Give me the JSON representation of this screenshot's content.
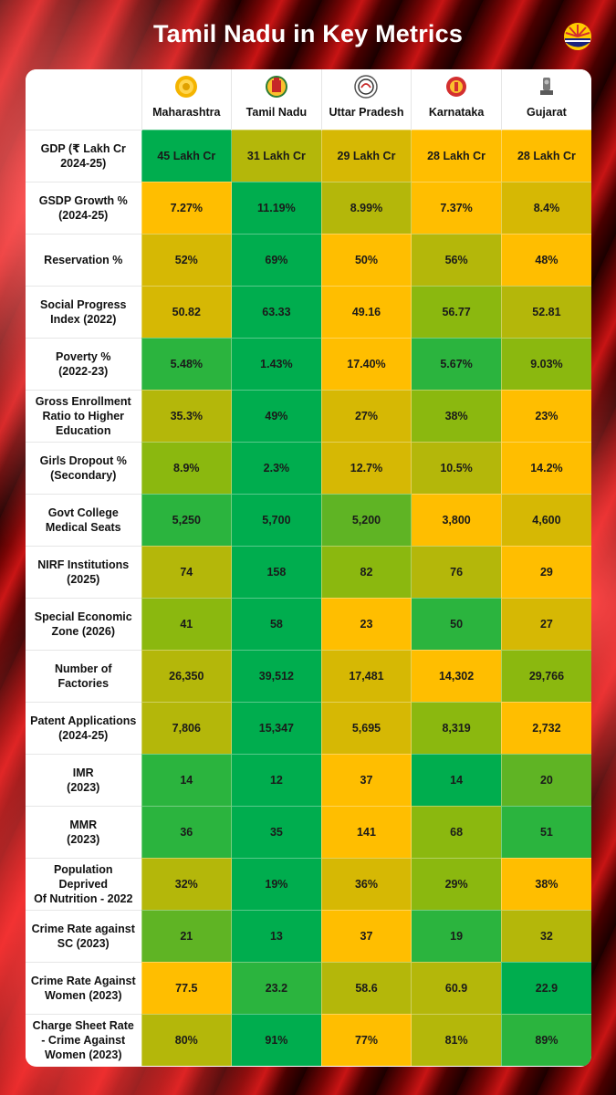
{
  "title": "Tamil Nadu in Key Metrics",
  "states": [
    "Maharashtra",
    "Tamil Nadu",
    "Uttar Pradesh",
    "Karnataka",
    "Gujarat"
  ],
  "rows": [
    {
      "label": "GDP (₹ Lakh Cr\n2024-25)",
      "values": [
        "45 Lakh Cr",
        "31 Lakh Cr",
        "29 Lakh Cr",
        "28 Lakh Cr",
        "28 Lakh Cr"
      ],
      "shades": [
        "g1",
        "y1",
        "y2",
        "o1",
        "o1"
      ]
    },
    {
      "label": "GSDP Growth %\n(2024-25)",
      "values": [
        "7.27%",
        "11.19%",
        "8.99%",
        "7.37%",
        "8.4%"
      ],
      "shades": [
        "o1",
        "g1",
        "y1",
        "o1",
        "y2"
      ]
    },
    {
      "label": "Reservation %",
      "values": [
        "52%",
        "69%",
        "50%",
        "56%",
        "48%"
      ],
      "shades": [
        "y2",
        "g1",
        "o1",
        "y1",
        "o1"
      ]
    },
    {
      "label": "Social Progress\nIndex (2022)",
      "values": [
        "50.82",
        "63.33",
        "49.16",
        "56.77",
        "52.81"
      ],
      "shades": [
        "y2",
        "g1",
        "o1",
        "g4",
        "y1"
      ]
    },
    {
      "label": "Poverty %\n(2022-23)",
      "values": [
        "5.48%",
        "1.43%",
        "17.40%",
        "5.67%",
        "9.03%"
      ],
      "shades": [
        "g2",
        "g1",
        "o1",
        "g2",
        "g4"
      ]
    },
    {
      "label": "Gross Enrollment\nRatio to Higher\nEducation",
      "values": [
        "35.3%",
        "49%",
        "27%",
        "38%",
        "23%"
      ],
      "shades": [
        "y1",
        "g1",
        "y2",
        "g4",
        "o1"
      ]
    },
    {
      "label": "Girls Dropout %\n(Secondary)",
      "values": [
        "8.9%",
        "2.3%",
        "12.7%",
        "10.5%",
        "14.2%"
      ],
      "shades": [
        "g4",
        "g1",
        "y2",
        "y1",
        "o1"
      ]
    },
    {
      "label": "Govt College\nMedical Seats",
      "values": [
        "5,250",
        "5,700",
        "5,200",
        "3,800",
        "4,600"
      ],
      "shades": [
        "g2",
        "g1",
        "g3",
        "o1",
        "y2"
      ]
    },
    {
      "label": "NIRF Institutions\n(2025)",
      "values": [
        "74",
        "158",
        "82",
        "76",
        "29"
      ],
      "shades": [
        "y1",
        "g1",
        "g4",
        "y1",
        "o1"
      ]
    },
    {
      "label": "Special Economic\nZone (2026)",
      "values": [
        "41",
        "58",
        "23",
        "50",
        "27"
      ],
      "shades": [
        "g4",
        "g1",
        "o1",
        "g2",
        "y2"
      ]
    },
    {
      "label": "Number of\nFactories",
      "values": [
        "26,350",
        "39,512",
        "17,481",
        "14,302",
        "29,766"
      ],
      "shades": [
        "y1",
        "g1",
        "y2",
        "o1",
        "g4"
      ]
    },
    {
      "label": "Patent Applications\n(2024-25)",
      "values": [
        "7,806",
        "15,347",
        "5,695",
        "8,319",
        "2,732"
      ],
      "shades": [
        "y1",
        "g1",
        "y2",
        "g4",
        "o1"
      ]
    },
    {
      "label": "IMR\n(2023)",
      "values": [
        "14",
        "12",
        "37",
        "14",
        "20"
      ],
      "shades": [
        "g2",
        "g1",
        "o1",
        "g1",
        "g3"
      ]
    },
    {
      "label": "MMR\n(2023)",
      "values": [
        "36",
        "35",
        "141",
        "68",
        "51"
      ],
      "shades": [
        "g2",
        "g1",
        "o1",
        "g4",
        "g2"
      ]
    },
    {
      "label": "Population\nDeprived\nOf Nutrition - 2022",
      "values": [
        "32%",
        "19%",
        "36%",
        "29%",
        "38%"
      ],
      "shades": [
        "y1",
        "g1",
        "y2",
        "g4",
        "o1"
      ]
    },
    {
      "label": "Crime Rate against\nSC (2023)",
      "values": [
        "21",
        "13",
        "37",
        "19",
        "32"
      ],
      "shades": [
        "g3",
        "g1",
        "o1",
        "g2",
        "y1"
      ]
    },
    {
      "label": "Crime Rate Against\nWomen (2023)",
      "values": [
        "77.5",
        "23.2",
        "58.6",
        "60.9",
        "22.9"
      ],
      "shades": [
        "o1",
        "g2",
        "y1",
        "y1",
        "g1"
      ]
    },
    {
      "label": "Charge Sheet Rate\n- Crime Against\nWomen (2023)",
      "values": [
        "80%",
        "91%",
        "77%",
        "81%",
        "89%"
      ],
      "shades": [
        "y1",
        "g1",
        "o1",
        "y1",
        "g2"
      ]
    }
  ]
}
